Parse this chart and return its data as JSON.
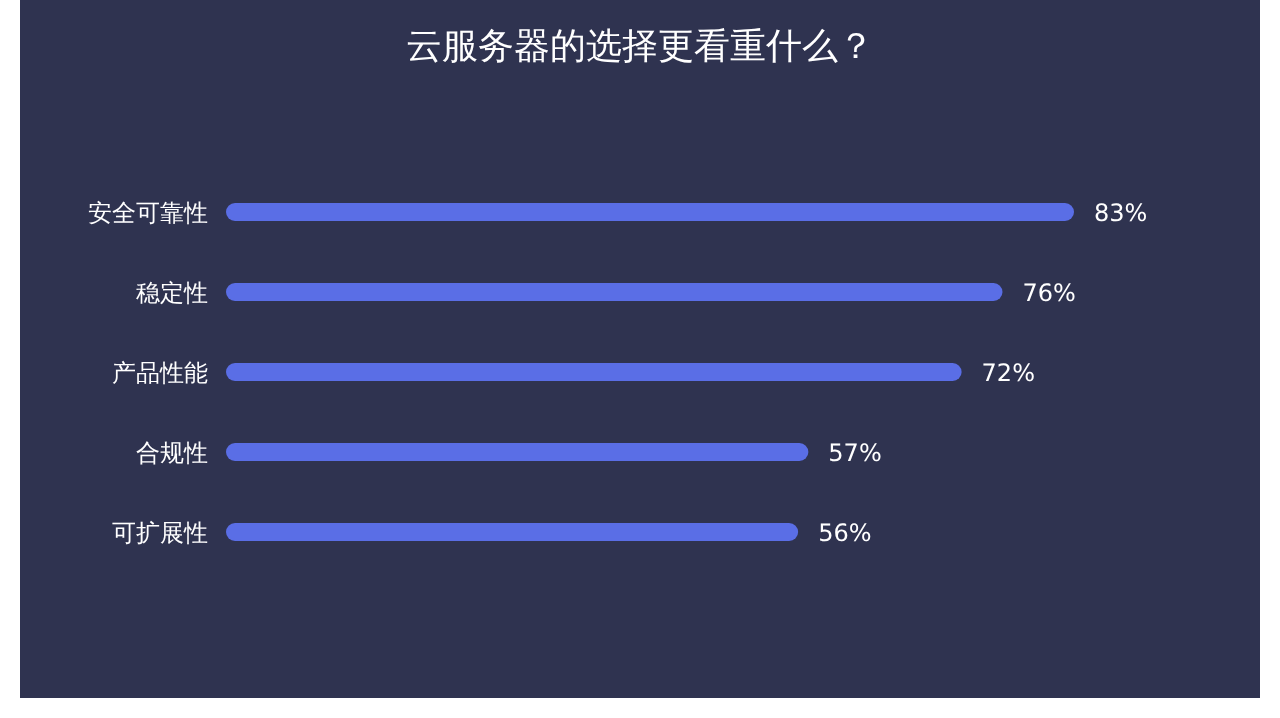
{
  "chart_data": {
    "type": "bar",
    "orientation": "horizontal",
    "title": "云服务器的选择更看重什么？",
    "categories": [
      "安全可靠性",
      "稳定性",
      "产品性能",
      "合规性",
      "可扩展性"
    ],
    "values": [
      83,
      76,
      72,
      57,
      56
    ],
    "value_labels": [
      "83%",
      "76%",
      "72%",
      "57%",
      "56%"
    ],
    "color": "#5a6ee6"
  }
}
